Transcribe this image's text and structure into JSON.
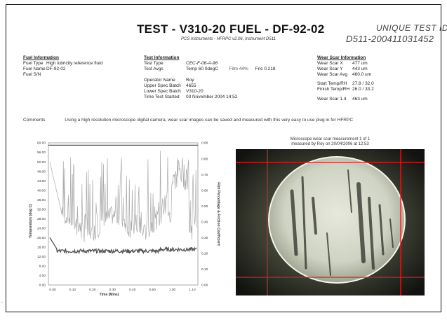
{
  "header": {
    "title": "TEST - V310-20  FUEL - DF-92-02",
    "subtitle": "PCS Instruments - HFRPC v2.06, Instrument D511",
    "unique_label": "UNIQUE TEST ID",
    "unique_id": "D511-200411031452"
  },
  "fuel_info": {
    "heading": "Fuel Information",
    "rows": [
      {
        "label": "Fuel Type",
        "value": "High lubricity reference fluid"
      },
      {
        "label": "Fuel Name",
        "value": "DF-92-02"
      },
      {
        "label": "Fuel S/N",
        "value": ""
      }
    ]
  },
  "test_info": {
    "heading": "Test Information",
    "test_type_label": "Test Type",
    "test_type_value": "CEC-F-06-A-96",
    "test_avgs_label": "Test Avgs",
    "test_avgs_temp": "Temp 60.0degC",
    "test_avgs_film": "Film 44%",
    "test_avgs_fric": "Fric 0.218",
    "rows": [
      {
        "label": "Operator Name",
        "value": "Roy"
      },
      {
        "label": "Upper Spec Batch",
        "value": "4655"
      },
      {
        "label": "Lower Spec Batch",
        "value": "V310-20"
      },
      {
        "label": "Time Test Started",
        "value": "03 November 2004 14:52"
      }
    ]
  },
  "wear_info": {
    "heading": "Wear Scar Information",
    "rows_a": [
      {
        "label": "Wear Scar X",
        "value": "477 um"
      },
      {
        "label": "Wear Scar Y",
        "value": "443 um"
      },
      {
        "label": "Wear Scar Avg",
        "value": "460.0 um"
      }
    ],
    "rows_b": [
      {
        "label": "Start Temp/RH",
        "value": "27.8 / 32.0"
      },
      {
        "label": "Finish Temp/RH",
        "value": "26.0 / 33.2"
      }
    ],
    "rows_c": [
      {
        "label": "Wear Scar 1.4",
        "value": "463 um"
      }
    ]
  },
  "comments": {
    "label": "Comments",
    "text": "Using a high resolution microscope digital camera, wear scar images can be saved and measured with this very easy to use plug in for HFRPC"
  },
  "microscope": {
    "caption_line1": "Microscope wear scar measurement 1 of 1",
    "caption_line2": "measured by Roy on 20/04/2006 at 12:53"
  },
  "footer_mark": ".",
  "chart_data": {
    "type": "line",
    "xlabel": "Time (Mins)",
    "ylabel": "Temperature (deg C)",
    "y2label": "Film Percentage & Friction Coefficient",
    "x_ticks": [
      "0.00",
      "0.10",
      "0.20",
      "0.30",
      "0.40",
      "0.50",
      "1.00",
      "1.10"
    ],
    "ylim": [
      0,
      60
    ],
    "y_ticks": [
      "60.00",
      "56.00",
      "52.00",
      "48.00",
      "44.00",
      "40.00",
      "36.00",
      "32.00",
      "28.00",
      "24.00",
      "20.00",
      "16.00",
      "12.00",
      "8.00",
      "4.00",
      "0.00"
    ],
    "y2lim": [
      0,
      0.9
    ],
    "y2_ticks": [
      "0.90",
      "0.80",
      "0.70",
      "0.60",
      "0.50",
      "0.40",
      "0.30",
      "0.20",
      "0.10",
      "0.00"
    ],
    "series": [
      {
        "name": "Temperature",
        "color": "#555555",
        "constant": 59.0
      },
      {
        "name": "Film",
        "color": "#aaaaaa",
        "approx_range": [
          0.25,
          0.85
        ]
      },
      {
        "name": "Friction",
        "color": "#555555",
        "approx_range": [
          0.2,
          0.3
        ]
      }
    ]
  }
}
